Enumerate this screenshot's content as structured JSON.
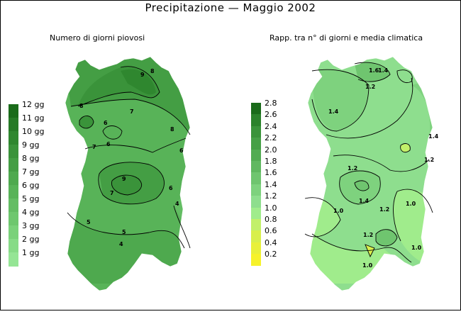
{
  "title": "Precipitazione  —  Maggio 2002",
  "left_panel": {
    "subtitle": "Numero di giorni piovosi",
    "legend": [
      {
        "label": "12  gg",
        "color": "#1a6b1a"
      },
      {
        "label": "11  gg",
        "color": "#267a26"
      },
      {
        "label": "10  gg",
        "color": "#2f872f"
      },
      {
        "label": "9  gg",
        "color": "#3a933a"
      },
      {
        "label": "8  gg",
        "color": "#449e44"
      },
      {
        "label": "7  gg",
        "color": "#4ea94e"
      },
      {
        "label": "6  gg",
        "color": "#58b358"
      },
      {
        "label": "5  gg",
        "color": "#63bd63"
      },
      {
        "label": "4  gg",
        "color": "#6ec76e"
      },
      {
        "label": "3  gg",
        "color": "#7ad17a"
      },
      {
        "label": "2  gg",
        "color": "#87db87"
      },
      {
        "label": "1  gg",
        "color": "#95e595"
      }
    ],
    "contour_labels": [
      "9",
      "8",
      "8",
      "7",
      "7",
      "6",
      "6",
      "9",
      "7",
      "6",
      "5",
      "4",
      "8",
      "6",
      "5",
      "4"
    ]
  },
  "right_panel": {
    "subtitle": "Rapp. tra n° di giorni e media climatica",
    "legend": [
      {
        "label": "2.8",
        "color": "#1a6b1a"
      },
      {
        "label": "2.6",
        "color": "#2b822b"
      },
      {
        "label": "2.4",
        "color": "#3a933a"
      },
      {
        "label": "2.2",
        "color": "#46a046"
      },
      {
        "label": "2.0",
        "color": "#53ac53"
      },
      {
        "label": "1.8",
        "color": "#60b860"
      },
      {
        "label": "1.6",
        "color": "#6fc56f"
      },
      {
        "label": "1.4",
        "color": "#7ed27e"
      },
      {
        "label": "1.2",
        "color": "#8ede8e"
      },
      {
        "label": "1.0",
        "color": "#a0ec8c"
      },
      {
        "label": "0.8",
        "color": "#c2f06a"
      },
      {
        "label": "0.6",
        "color": "#d8ef4c"
      },
      {
        "label": "0.4",
        "color": "#e8f03a"
      },
      {
        "label": "0.2",
        "color": "#f6f22a"
      }
    ],
    "contour_labels": [
      "1.6",
      "1.4",
      "1.2",
      "1.4",
      "1.2",
      "1.4",
      "1.0",
      "1.2",
      "1.0",
      "1.2",
      "1.0",
      "1.0",
      "1.2",
      "1.4"
    ]
  }
}
